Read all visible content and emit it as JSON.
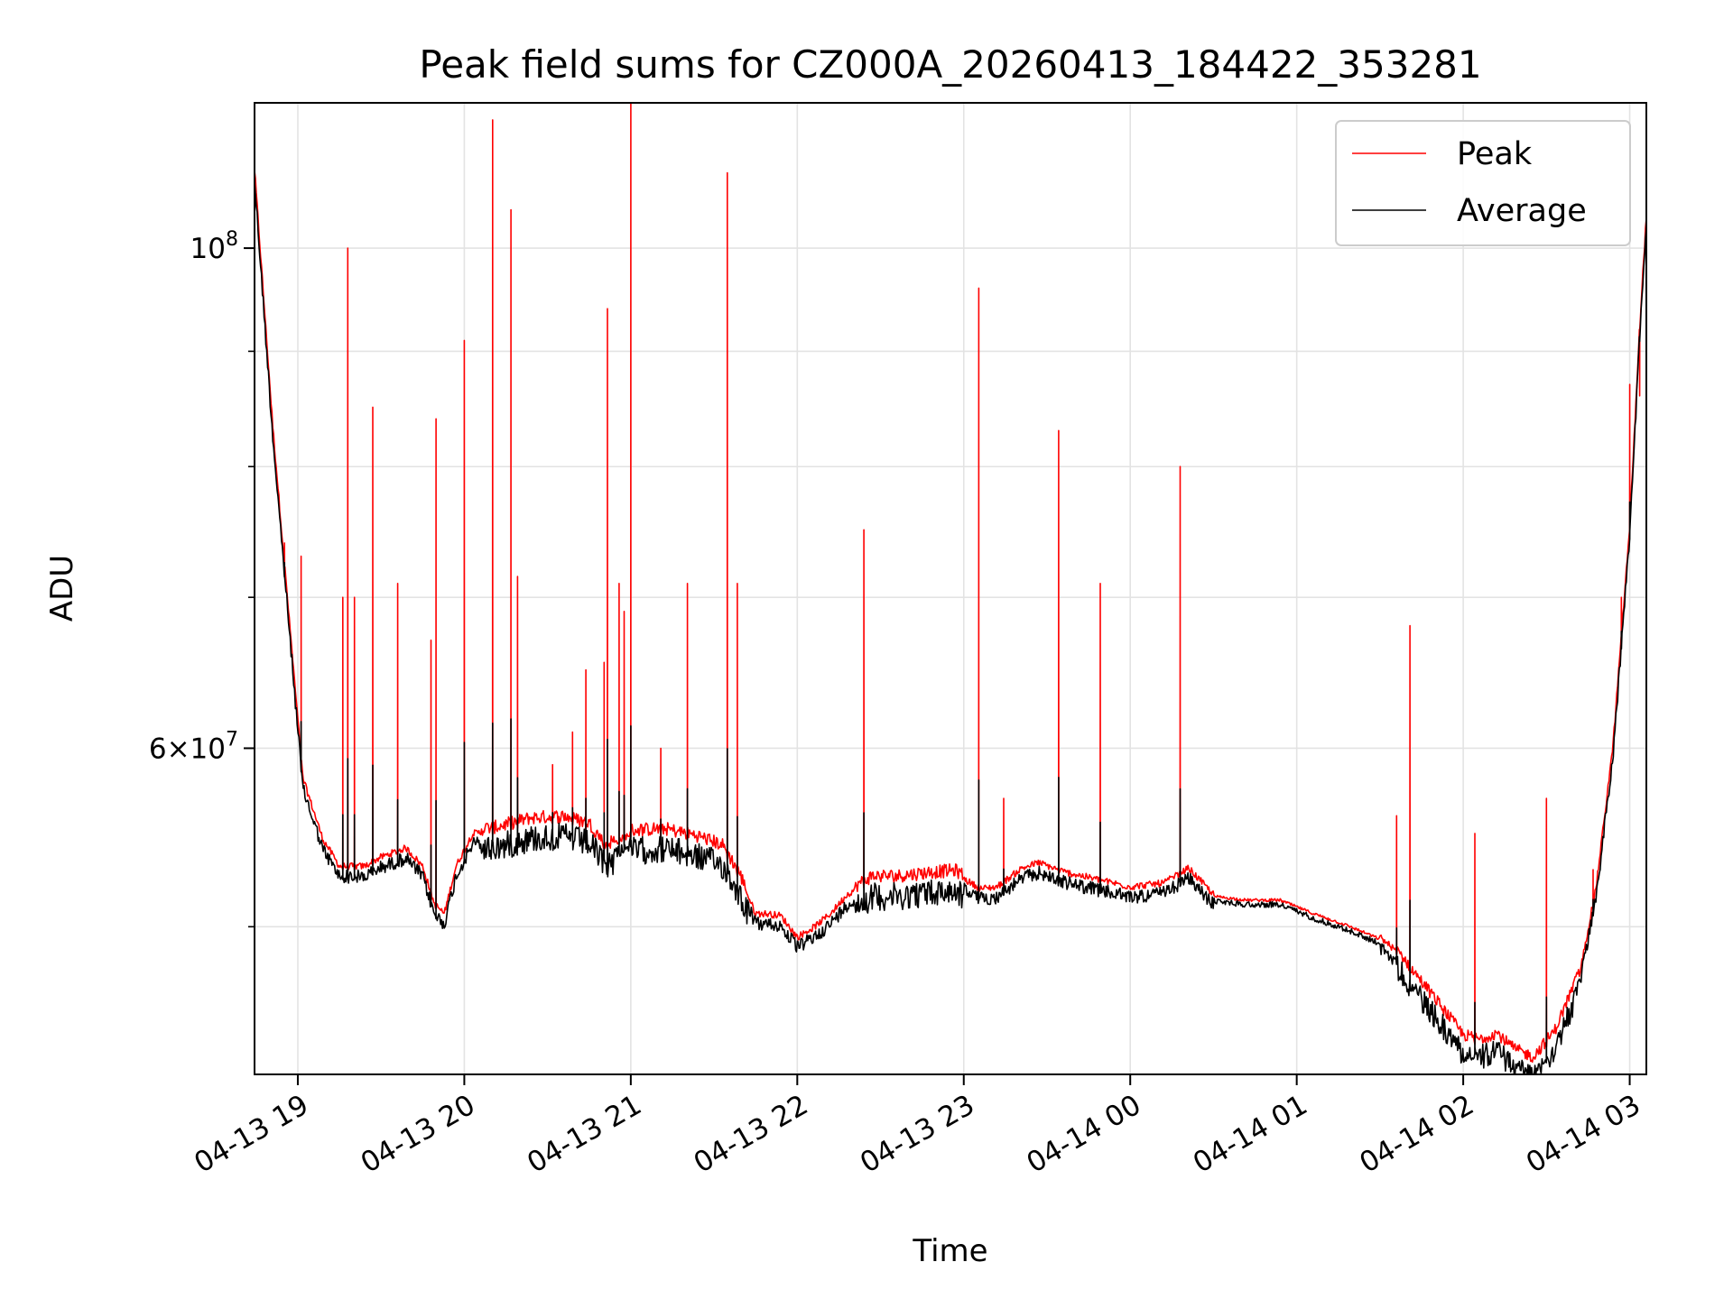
{
  "chart_data": {
    "type": "line",
    "title": "Peak field sums for CZ000A_20260413_184422_353281",
    "xlabel": "Time",
    "ylabel": "ADU",
    "yscale": "log",
    "xlim_hours": [
      18.74,
      27.1
    ],
    "ylim": [
      43000000,
      116000000
    ],
    "x_ticks": [
      {
        "hour": 19,
        "label": "04-13 19"
      },
      {
        "hour": 20,
        "label": "04-13 20"
      },
      {
        "hour": 21,
        "label": "04-13 21"
      },
      {
        "hour": 22,
        "label": "04-13 22"
      },
      {
        "hour": 23,
        "label": "04-13 23"
      },
      {
        "hour": 24,
        "label": "04-14 00"
      },
      {
        "hour": 25,
        "label": "04-14 01"
      },
      {
        "hour": 26,
        "label": "04-14 02"
      },
      {
        "hour": 27,
        "label": "04-14 03"
      }
    ],
    "y_major_ticks": [
      {
        "value": 60000000,
        "mantissa": "6",
        "exp": "7"
      },
      {
        "value": 100000000,
        "mantissa": "",
        "exp": "8"
      }
    ],
    "y_minor_ticks": [
      50000000,
      70000000,
      80000000,
      90000000
    ],
    "grid": true,
    "legend_position": "top-right",
    "series": [
      {
        "name": "Peak",
        "color": "#ff0000"
      },
      {
        "name": "Average",
        "color": "#000000"
      }
    ],
    "baseline": [
      [
        18.74,
        108000000
      ],
      [
        18.85,
        83000000
      ],
      [
        18.95,
        68000000
      ],
      [
        19.03,
        58000000
      ],
      [
        19.15,
        54500000
      ],
      [
        19.25,
        53000000
      ],
      [
        19.4,
        53000000
      ],
      [
        19.5,
        53500000
      ],
      [
        19.65,
        54000000
      ],
      [
        19.75,
        53000000
      ],
      [
        19.82,
        51000000
      ],
      [
        19.88,
        50500000
      ],
      [
        19.95,
        53000000
      ],
      [
        20.05,
        54800000
      ],
      [
        20.2,
        55000000
      ],
      [
        20.4,
        55500000
      ],
      [
        20.6,
        55600000
      ],
      [
        20.75,
        55200000
      ],
      [
        20.85,
        54000000
      ],
      [
        21.0,
        54800000
      ],
      [
        21.2,
        54900000
      ],
      [
        21.4,
        54500000
      ],
      [
        21.55,
        54000000
      ],
      [
        21.65,
        52500000
      ],
      [
        21.75,
        50500000
      ],
      [
        21.8,
        50500000
      ],
      [
        21.9,
        50400000
      ],
      [
        22.0,
        49300000
      ],
      [
        22.1,
        49800000
      ],
      [
        22.2,
        50500000
      ],
      [
        22.3,
        51500000
      ],
      [
        22.45,
        52300000
      ],
      [
        22.6,
        52300000
      ],
      [
        22.8,
        52500000
      ],
      [
        22.95,
        52600000
      ],
      [
        23.1,
        51800000
      ],
      [
        23.2,
        51900000
      ],
      [
        23.35,
        52900000
      ],
      [
        23.45,
        53200000
      ],
      [
        23.6,
        52700000
      ],
      [
        23.8,
        52300000
      ],
      [
        24.0,
        51900000
      ],
      [
        24.2,
        52100000
      ],
      [
        24.35,
        52900000
      ],
      [
        24.5,
        51500000
      ],
      [
        24.7,
        51300000
      ],
      [
        24.9,
        51300000
      ],
      [
        25.1,
        50600000
      ],
      [
        25.3,
        50000000
      ],
      [
        25.5,
        49300000
      ],
      [
        25.6,
        48600000
      ],
      [
        25.7,
        47500000
      ],
      [
        25.85,
        46000000
      ],
      [
        26.0,
        44500000
      ],
      [
        26.1,
        44300000
      ],
      [
        26.2,
        44600000
      ],
      [
        26.3,
        43900000
      ],
      [
        26.42,
        43500000
      ],
      [
        26.55,
        44700000
      ],
      [
        26.7,
        47500000
      ],
      [
        26.8,
        52000000
      ],
      [
        26.9,
        60000000
      ],
      [
        27.0,
        75000000
      ],
      [
        27.06,
        92000000
      ],
      [
        27.1,
        103000000
      ]
    ],
    "spikes": [
      [
        18.92,
        74000000
      ],
      [
        19.02,
        73000000
      ],
      [
        19.27,
        70000000
      ],
      [
        19.3,
        100000000
      ],
      [
        19.34,
        70000000
      ],
      [
        19.45,
        85000000
      ],
      [
        19.6,
        71000000
      ],
      [
        19.8,
        67000000
      ],
      [
        19.83,
        84000000
      ],
      [
        20.0,
        91000000
      ],
      [
        20.17,
        114000000
      ],
      [
        20.28,
        104000000
      ],
      [
        20.32,
        71500000
      ],
      [
        20.53,
        59000000
      ],
      [
        20.65,
        61000000
      ],
      [
        20.73,
        65000000
      ],
      [
        20.84,
        65500000
      ],
      [
        20.86,
        94000000
      ],
      [
        20.93,
        71000000
      ],
      [
        20.96,
        69000000
      ],
      [
        21.0,
        118000000
      ],
      [
        21.18,
        60000000
      ],
      [
        21.34,
        71000000
      ],
      [
        21.58,
        108000000
      ],
      [
        21.64,
        71000000
      ],
      [
        22.4,
        75000000
      ],
      [
        23.09,
        96000000
      ],
      [
        23.24,
        57000000
      ],
      [
        23.57,
        83000000
      ],
      [
        23.82,
        71000000
      ],
      [
        24.3,
        80000000
      ],
      [
        25.6,
        56000000
      ],
      [
        25.68,
        68000000
      ],
      [
        26.07,
        55000000
      ],
      [
        26.5,
        57000000
      ],
      [
        26.78,
        53000000
      ],
      [
        26.95,
        70000000
      ],
      [
        27.0,
        87000000
      ],
      [
        27.06,
        86000000
      ],
      [
        27.1,
        110000000
      ]
    ]
  }
}
